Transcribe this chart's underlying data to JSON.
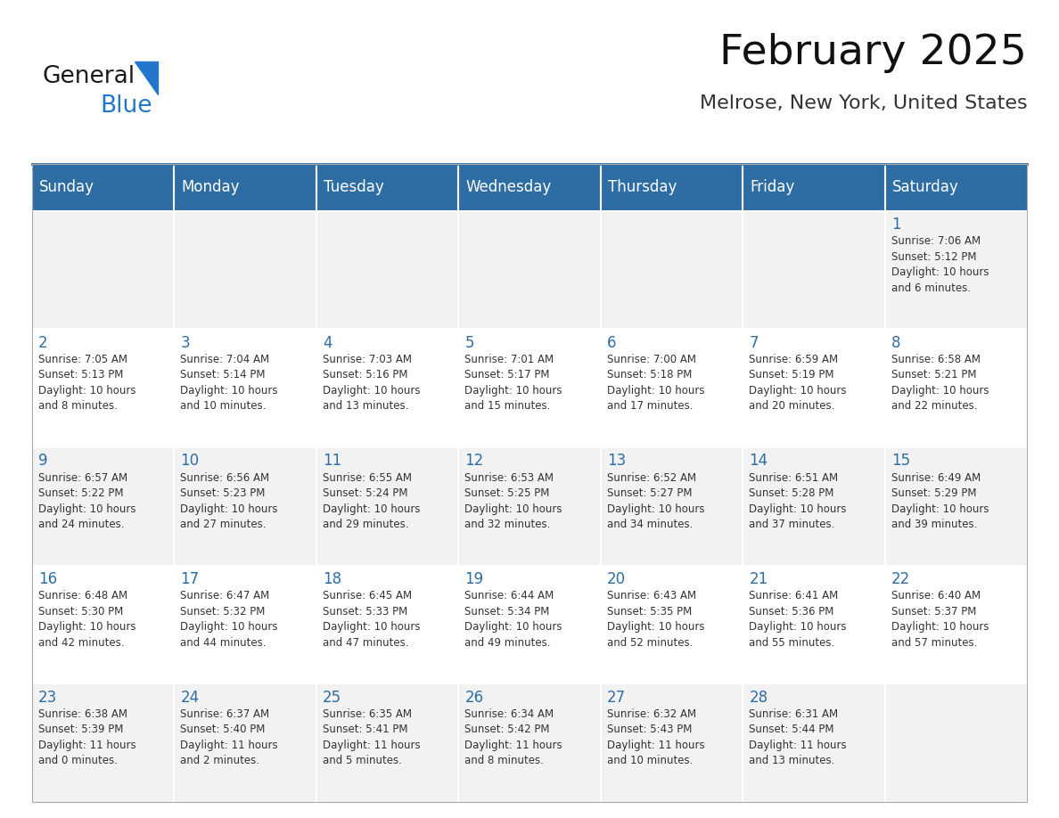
{
  "title": "February 2025",
  "subtitle": "Melrose, New York, United States",
  "header_bg": "#2E6DA4",
  "header_text_color": "#FFFFFF",
  "cell_bg_odd": "#F2F2F2",
  "cell_bg_even": "#FFFFFF",
  "day_number_color": "#2E6DA4",
  "cell_text_color": "#333333",
  "days_of_week": [
    "Sunday",
    "Monday",
    "Tuesday",
    "Wednesday",
    "Thursday",
    "Friday",
    "Saturday"
  ],
  "logo_color1": "#1a1a1a",
  "logo_color2": "#2277CC",
  "logo_triangle_color": "#2277CC",
  "calendar_data": [
    [
      {
        "day": "",
        "sunrise": "",
        "sunset": "",
        "daylight": ""
      },
      {
        "day": "",
        "sunrise": "",
        "sunset": "",
        "daylight": ""
      },
      {
        "day": "",
        "sunrise": "",
        "sunset": "",
        "daylight": ""
      },
      {
        "day": "",
        "sunrise": "",
        "sunset": "",
        "daylight": ""
      },
      {
        "day": "",
        "sunrise": "",
        "sunset": "",
        "daylight": ""
      },
      {
        "day": "",
        "sunrise": "",
        "sunset": "",
        "daylight": ""
      },
      {
        "day": "1",
        "sunrise": "7:06 AM",
        "sunset": "5:12 PM",
        "daylight": "10 hours\nand 6 minutes."
      }
    ],
    [
      {
        "day": "2",
        "sunrise": "7:05 AM",
        "sunset": "5:13 PM",
        "daylight": "10 hours\nand 8 minutes."
      },
      {
        "day": "3",
        "sunrise": "7:04 AM",
        "sunset": "5:14 PM",
        "daylight": "10 hours\nand 10 minutes."
      },
      {
        "day": "4",
        "sunrise": "7:03 AM",
        "sunset": "5:16 PM",
        "daylight": "10 hours\nand 13 minutes."
      },
      {
        "day": "5",
        "sunrise": "7:01 AM",
        "sunset": "5:17 PM",
        "daylight": "10 hours\nand 15 minutes."
      },
      {
        "day": "6",
        "sunrise": "7:00 AM",
        "sunset": "5:18 PM",
        "daylight": "10 hours\nand 17 minutes."
      },
      {
        "day": "7",
        "sunrise": "6:59 AM",
        "sunset": "5:19 PM",
        "daylight": "10 hours\nand 20 minutes."
      },
      {
        "day": "8",
        "sunrise": "6:58 AM",
        "sunset": "5:21 PM",
        "daylight": "10 hours\nand 22 minutes."
      }
    ],
    [
      {
        "day": "9",
        "sunrise": "6:57 AM",
        "sunset": "5:22 PM",
        "daylight": "10 hours\nand 24 minutes."
      },
      {
        "day": "10",
        "sunrise": "6:56 AM",
        "sunset": "5:23 PM",
        "daylight": "10 hours\nand 27 minutes."
      },
      {
        "day": "11",
        "sunrise": "6:55 AM",
        "sunset": "5:24 PM",
        "daylight": "10 hours\nand 29 minutes."
      },
      {
        "day": "12",
        "sunrise": "6:53 AM",
        "sunset": "5:25 PM",
        "daylight": "10 hours\nand 32 minutes."
      },
      {
        "day": "13",
        "sunrise": "6:52 AM",
        "sunset": "5:27 PM",
        "daylight": "10 hours\nand 34 minutes."
      },
      {
        "day": "14",
        "sunrise": "6:51 AM",
        "sunset": "5:28 PM",
        "daylight": "10 hours\nand 37 minutes."
      },
      {
        "day": "15",
        "sunrise": "6:49 AM",
        "sunset": "5:29 PM",
        "daylight": "10 hours\nand 39 minutes."
      }
    ],
    [
      {
        "day": "16",
        "sunrise": "6:48 AM",
        "sunset": "5:30 PM",
        "daylight": "10 hours\nand 42 minutes."
      },
      {
        "day": "17",
        "sunrise": "6:47 AM",
        "sunset": "5:32 PM",
        "daylight": "10 hours\nand 44 minutes."
      },
      {
        "day": "18",
        "sunrise": "6:45 AM",
        "sunset": "5:33 PM",
        "daylight": "10 hours\nand 47 minutes."
      },
      {
        "day": "19",
        "sunrise": "6:44 AM",
        "sunset": "5:34 PM",
        "daylight": "10 hours\nand 49 minutes."
      },
      {
        "day": "20",
        "sunrise": "6:43 AM",
        "sunset": "5:35 PM",
        "daylight": "10 hours\nand 52 minutes."
      },
      {
        "day": "21",
        "sunrise": "6:41 AM",
        "sunset": "5:36 PM",
        "daylight": "10 hours\nand 55 minutes."
      },
      {
        "day": "22",
        "sunrise": "6:40 AM",
        "sunset": "5:37 PM",
        "daylight": "10 hours\nand 57 minutes."
      }
    ],
    [
      {
        "day": "23",
        "sunrise": "6:38 AM",
        "sunset": "5:39 PM",
        "daylight": "11 hours\nand 0 minutes."
      },
      {
        "day": "24",
        "sunrise": "6:37 AM",
        "sunset": "5:40 PM",
        "daylight": "11 hours\nand 2 minutes."
      },
      {
        "day": "25",
        "sunrise": "6:35 AM",
        "sunset": "5:41 PM",
        "daylight": "11 hours\nand 5 minutes."
      },
      {
        "day": "26",
        "sunrise": "6:34 AM",
        "sunset": "5:42 PM",
        "daylight": "11 hours\nand 8 minutes."
      },
      {
        "day": "27",
        "sunrise": "6:32 AM",
        "sunset": "5:43 PM",
        "daylight": "11 hours\nand 10 minutes."
      },
      {
        "day": "28",
        "sunrise": "6:31 AM",
        "sunset": "5:44 PM",
        "daylight": "11 hours\nand 13 minutes."
      },
      {
        "day": "",
        "sunrise": "",
        "sunset": "",
        "daylight": ""
      }
    ]
  ]
}
